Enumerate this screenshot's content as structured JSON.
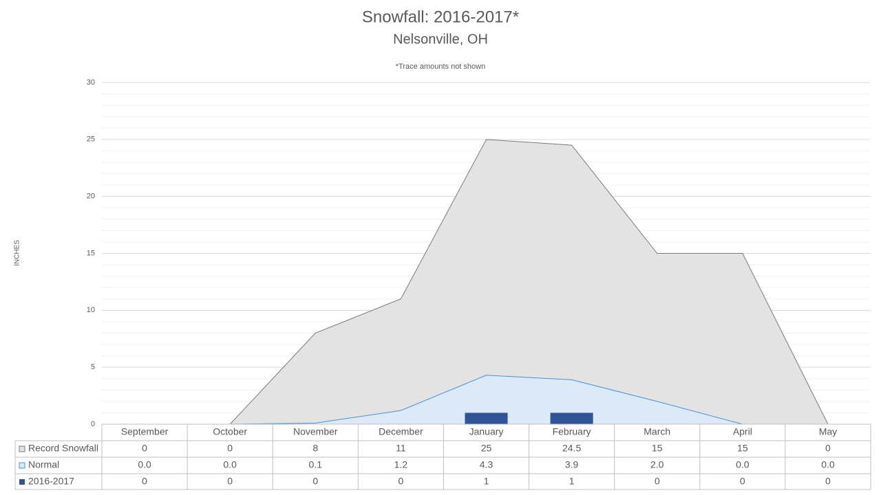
{
  "chart_data": {
    "type": "combo",
    "title": "Snowfall: 2016-2017*",
    "subtitle": "Nelsonville, OH",
    "annotation": "*Trace amounts not shown",
    "y_label": "INCHES",
    "categories": [
      "September",
      "October",
      "November",
      "December",
      "January",
      "February",
      "March",
      "April",
      "May"
    ],
    "series": [
      {
        "name": "Record Snowfall",
        "type": "area",
        "color": "#e3e3e3",
        "line_color": "#7a7a7a",
        "values": [
          0,
          0,
          8,
          11,
          25,
          24.5,
          15,
          15,
          0
        ]
      },
      {
        "name": "Normal",
        "type": "area",
        "color": "#dce9f6",
        "line_color": "#4a90d2",
        "values": [
          0.0,
          0.0,
          0.1,
          1.2,
          4.3,
          3.9,
          2.0,
          0.0,
          0.0
        ],
        "value_labels": [
          "0.0",
          "0.0",
          "0.1",
          "1.2",
          "4.3",
          "3.9",
          "2.0",
          "0.0",
          "0.0"
        ]
      },
      {
        "name": "2016-2017",
        "type": "bar",
        "color": "#2f5597",
        "values": [
          0,
          0,
          0,
          0,
          1,
          1,
          0,
          0,
          0
        ]
      }
    ],
    "ylim": [
      0,
      30
    ],
    "yticks": [
      0,
      5,
      10,
      15,
      20,
      25,
      30
    ],
    "grid": true,
    "minor_grid": true
  }
}
